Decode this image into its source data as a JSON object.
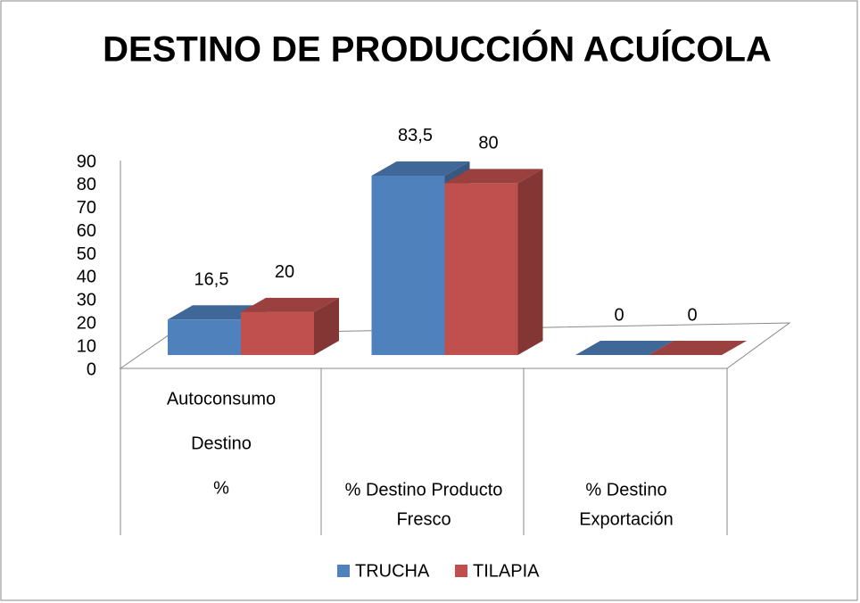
{
  "chart_data": {
    "type": "bar3d",
    "title": "DESTINO DE PRODUCCIÓN ACUÍCOLA",
    "categories": [
      [
        "Autoconsumo",
        "Destino",
        "%"
      ],
      [
        "% Destino Producto",
        "Fresco"
      ],
      [
        "% Destino",
        "Exportación"
      ]
    ],
    "series": [
      {
        "name": "TRUCHA",
        "color": "#4f81bd",
        "values": [
          16.5,
          83.5,
          0
        ],
        "value_labels": [
          "16,5",
          "83,5",
          "0"
        ]
      },
      {
        "name": "TILAPIA",
        "color": "#c0504d",
        "values": [
          20,
          80,
          0
        ],
        "value_labels": [
          "20",
          "80",
          "0"
        ]
      }
    ],
    "ylim": [
      0,
      90
    ],
    "yticks": [
      0,
      10,
      20,
      30,
      40,
      50,
      60,
      70,
      80,
      90
    ],
    "legend": "bottom"
  }
}
